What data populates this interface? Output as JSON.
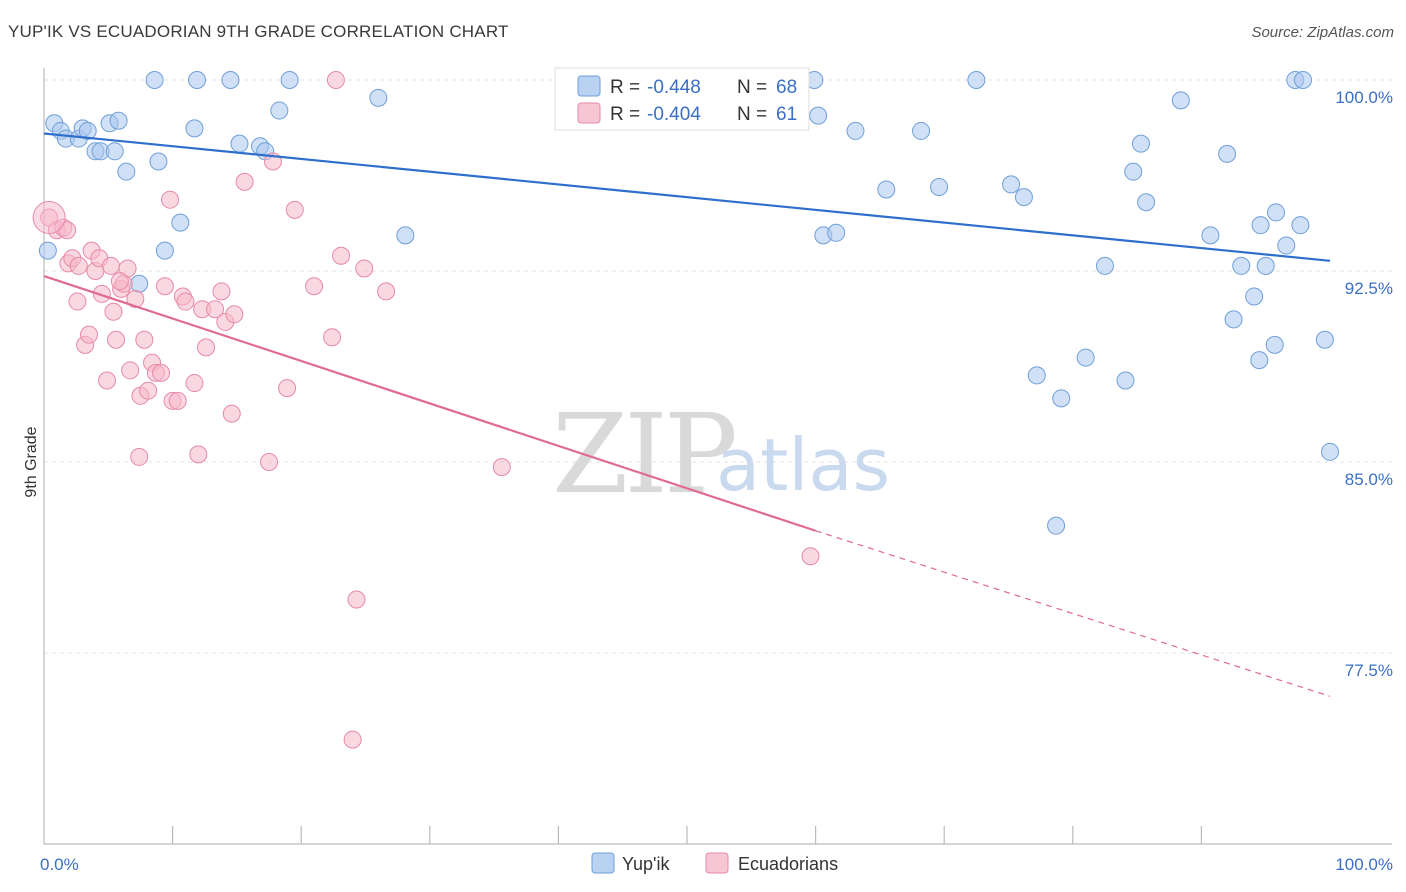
{
  "header": {
    "title": "YUP'IK VS ECUADORIAN 9TH GRADE CORRELATION CHART",
    "source": "Source: ZipAtlas.com"
  },
  "watermark": {
    "zip": "ZIP",
    "atlas": "atlas"
  },
  "legend": {
    "rows": [
      {
        "r_label": "R = ",
        "r_value": "-0.448",
        "n_label": "N = ",
        "n_value": "68",
        "color": "#a9c7ee"
      },
      {
        "r_label": "R = ",
        "r_value": "-0.404",
        "n_label": "N = ",
        "n_value": "61",
        "color": "#f5b8cb"
      }
    ]
  },
  "bottom_legend": [
    {
      "label": "Yup'ik",
      "color": "#a9c7ee"
    },
    {
      "label": "Ecuadorians",
      "color": "#f5b8cb"
    }
  ],
  "chart_data": {
    "type": "scatter",
    "title": "YUP'IK VS ECUADORIAN 9TH GRADE CORRELATION CHART",
    "xlabel": "",
    "ylabel": "9th Grade",
    "xlim": [
      0,
      100
    ],
    "ylim": [
      72.0,
      101.0
    ],
    "x_tick_labels": [
      {
        "value": 0,
        "label": "0.0%"
      },
      {
        "value": 100,
        "label": "100.0%"
      }
    ],
    "y_tick_labels": [
      {
        "value": 100.0,
        "label": "100.0%"
      },
      {
        "value": 92.5,
        "label": "92.5%"
      },
      {
        "value": 85.0,
        "label": "85.0%"
      },
      {
        "value": 77.5,
        "label": "77.5%"
      }
    ],
    "grid": true,
    "series": [
      {
        "name": "Yup'ik",
        "color": "#a9c7ee",
        "stroke": "#6f9fd8",
        "trend": {
          "x": [
            0,
            100
          ],
          "y": [
            97.9,
            92.9
          ],
          "color": "#2f6fcc"
        },
        "points": [
          [
            0.3,
            93.3
          ],
          [
            0.8,
            98.3
          ],
          [
            1.3,
            98.0
          ],
          [
            1.7,
            97.7
          ],
          [
            2.7,
            97.7
          ],
          [
            3.0,
            98.1
          ],
          [
            3.4,
            98.0
          ],
          [
            4.0,
            97.2
          ],
          [
            4.4,
            97.2
          ],
          [
            5.1,
            98.3
          ],
          [
            5.5,
            97.2
          ],
          [
            5.8,
            98.4
          ],
          [
            6.4,
            96.4
          ],
          [
            8.6,
            100.0
          ],
          [
            8.9,
            96.8
          ],
          [
            9.4,
            93.3
          ],
          [
            10.6,
            94.4
          ],
          [
            11.7,
            98.1
          ],
          [
            11.9,
            100.0
          ],
          [
            14.5,
            100.0
          ],
          [
            15.2,
            97.5
          ],
          [
            16.8,
            97.4
          ],
          [
            17.2,
            97.2
          ],
          [
            18.3,
            98.8
          ],
          [
            19.1,
            100.0
          ],
          [
            26.0,
            99.3
          ],
          [
            28.1,
            93.9
          ],
          [
            41.4,
            100.0
          ],
          [
            49.0,
            100.0
          ],
          [
            52.3,
            100.0
          ],
          [
            59.9,
            100.0
          ],
          [
            60.2,
            98.6
          ],
          [
            60.6,
            93.9
          ],
          [
            61.6,
            94.0
          ],
          [
            63.1,
            98.0
          ],
          [
            65.5,
            95.7
          ],
          [
            68.2,
            98.0
          ],
          [
            69.6,
            95.8
          ],
          [
            72.5,
            100.0
          ],
          [
            75.2,
            95.9
          ],
          [
            76.2,
            95.4
          ],
          [
            77.2,
            88.4
          ],
          [
            78.7,
            82.5
          ],
          [
            79.1,
            87.5
          ],
          [
            81.0,
            89.1
          ],
          [
            82.5,
            92.7
          ],
          [
            84.1,
            88.2
          ],
          [
            84.7,
            96.4
          ],
          [
            85.3,
            97.5
          ],
          [
            85.7,
            95.2
          ],
          [
            88.4,
            99.2
          ],
          [
            90.7,
            93.9
          ],
          [
            92.0,
            97.1
          ],
          [
            92.5,
            90.6
          ],
          [
            93.1,
            92.7
          ],
          [
            94.1,
            91.5
          ],
          [
            94.5,
            89.0
          ],
          [
            94.6,
            94.3
          ],
          [
            95.0,
            92.7
          ],
          [
            95.7,
            89.6
          ],
          [
            95.8,
            94.8
          ],
          [
            96.6,
            93.5
          ],
          [
            97.3,
            100.0
          ],
          [
            97.7,
            94.3
          ],
          [
            97.9,
            100.0
          ],
          [
            99.6,
            89.8
          ],
          [
            100.0,
            85.4
          ],
          [
            7.4,
            92.0
          ]
        ]
      },
      {
        "name": "Ecuadorians",
        "color": "#f5b8cb",
        "stroke": "#e68aa8",
        "trend": {
          "x": [
            0,
            60
          ],
          "y": [
            92.3,
            82.3
          ],
          "color": "#e06a91",
          "extend_to_x": 100,
          "extend_to_y": 75.8
        },
        "points": [
          [
            0.4,
            94.6
          ],
          [
            1.0,
            94.1
          ],
          [
            1.5,
            94.2
          ],
          [
            1.9,
            92.8
          ],
          [
            2.2,
            93.0
          ],
          [
            2.6,
            91.3
          ],
          [
            2.7,
            92.7
          ],
          [
            3.2,
            89.6
          ],
          [
            3.5,
            90.0
          ],
          [
            3.7,
            93.3
          ],
          [
            4.0,
            92.5
          ],
          [
            4.3,
            93.0
          ],
          [
            4.5,
            91.6
          ],
          [
            4.9,
            88.2
          ],
          [
            5.2,
            92.7
          ],
          [
            5.4,
            90.9
          ],
          [
            5.6,
            89.8
          ],
          [
            6.0,
            91.8
          ],
          [
            6.2,
            92.0
          ],
          [
            6.5,
            92.6
          ],
          [
            6.7,
            88.6
          ],
          [
            7.1,
            91.4
          ],
          [
            7.4,
            85.2
          ],
          [
            7.5,
            87.6
          ],
          [
            7.8,
            89.8
          ],
          [
            8.1,
            87.8
          ],
          [
            8.4,
            88.9
          ],
          [
            8.7,
            88.5
          ],
          [
            9.1,
            88.5
          ],
          [
            9.4,
            91.9
          ],
          [
            9.8,
            95.3
          ],
          [
            10.0,
            87.4
          ],
          [
            10.4,
            87.4
          ],
          [
            10.8,
            91.5
          ],
          [
            11.0,
            91.3
          ],
          [
            11.7,
            88.1
          ],
          [
            12.0,
            85.3
          ],
          [
            12.3,
            91.0
          ],
          [
            12.6,
            89.5
          ],
          [
            13.3,
            91.0
          ],
          [
            13.8,
            91.7
          ],
          [
            14.1,
            90.5
          ],
          [
            14.6,
            86.9
          ],
          [
            14.8,
            90.8
          ],
          [
            15.6,
            96.0
          ],
          [
            17.5,
            85.0
          ],
          [
            17.8,
            96.8
          ],
          [
            18.9,
            87.9
          ],
          [
            19.5,
            94.9
          ],
          [
            21.0,
            91.9
          ],
          [
            22.4,
            89.9
          ],
          [
            22.7,
            100.0
          ],
          [
            23.1,
            93.1
          ],
          [
            24.0,
            74.1
          ],
          [
            24.3,
            79.6
          ],
          [
            24.9,
            92.6
          ],
          [
            26.6,
            91.7
          ],
          [
            35.6,
            84.8
          ],
          [
            59.6,
            81.3
          ],
          [
            1.8,
            94.1
          ],
          [
            5.9,
            92.1
          ]
        ]
      }
    ]
  }
}
